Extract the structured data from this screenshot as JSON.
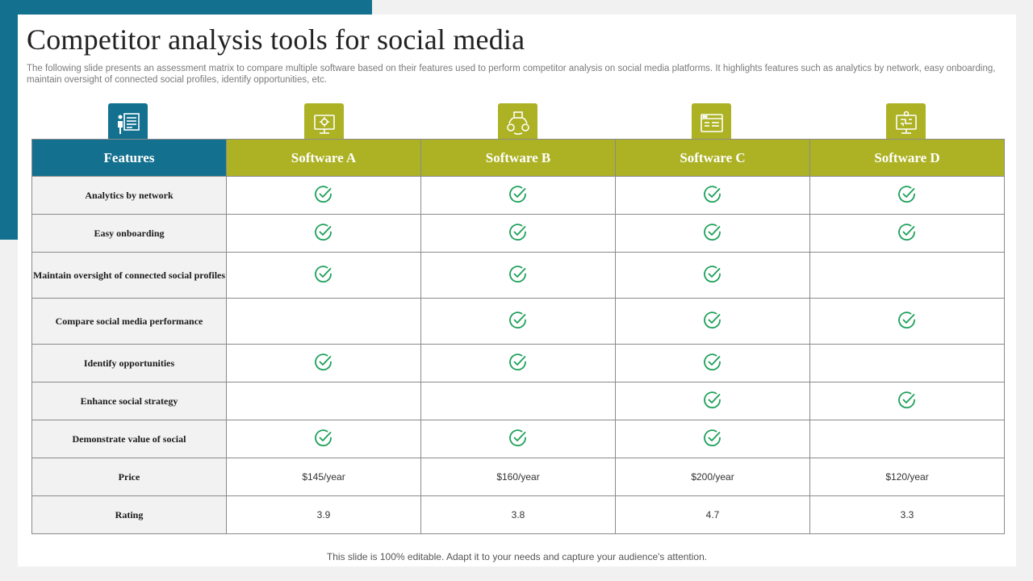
{
  "slide": {
    "title": "Competitor analysis tools for social media",
    "subtitle": "The following slide presents an assessment matrix to compare multiple software based on their features used to perform competitor analysis on social media platforms. It highlights features such as analytics by network, easy onboarding, maintain oversight of connected social profiles, identify opportunities, etc.",
    "footer": "This slide is 100% editable. Adapt it to your needs and capture your audience's attention."
  },
  "colors": {
    "teal": "#13718f",
    "olive": "#adb224",
    "check": "#1ea05a"
  },
  "icons": {
    "features": "presentation-board-icon",
    "software_a": "monitor-gear-icon",
    "software_b": "settings-cycle-icon",
    "software_c": "browser-window-icon",
    "software_d": "monitor-circuit-icon"
  },
  "table": {
    "headers": [
      "Features",
      "Software A",
      "Software B",
      "Software C",
      "Software D"
    ],
    "rows": [
      {
        "feature": "Analytics by network",
        "marks": [
          true,
          true,
          true,
          true
        ]
      },
      {
        "feature": "Easy onboarding",
        "marks": [
          true,
          true,
          true,
          true
        ]
      },
      {
        "feature": "Maintain oversight of connected social profiles",
        "marks": [
          true,
          true,
          true,
          false
        ]
      },
      {
        "feature": "Compare social media performance",
        "marks": [
          false,
          true,
          true,
          true
        ]
      },
      {
        "feature": "Identify opportunities",
        "marks": [
          true,
          true,
          true,
          false
        ]
      },
      {
        "feature": "Enhance social strategy",
        "marks": [
          false,
          false,
          true,
          true
        ]
      },
      {
        "feature": "Demonstrate value of social",
        "marks": [
          true,
          true,
          true,
          false
        ]
      },
      {
        "feature": "Price",
        "values": [
          "$145/year",
          "$160/year",
          "$200/year",
          "$120/year"
        ]
      },
      {
        "feature": "Rating",
        "values": [
          "3.9",
          "3.8",
          "4.7",
          "3.3"
        ]
      }
    ]
  }
}
